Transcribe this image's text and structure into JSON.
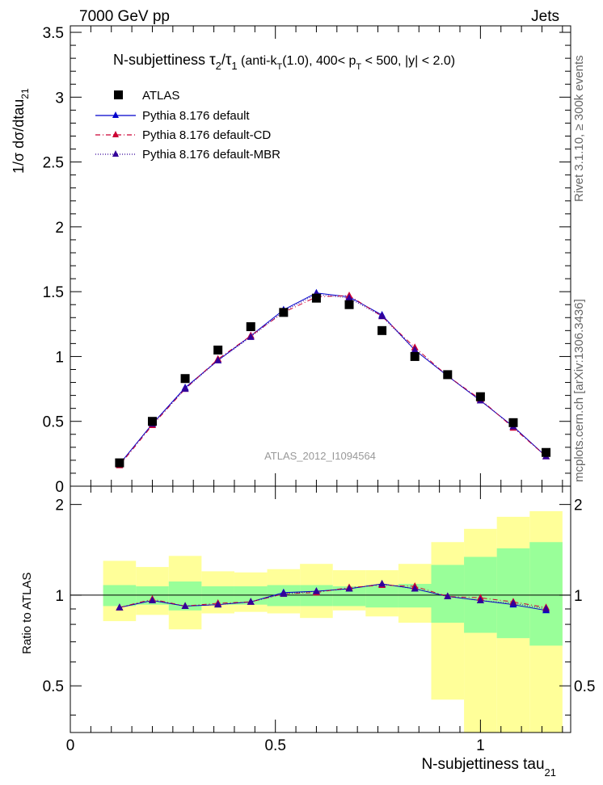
{
  "header": {
    "left": "7000 GeV pp",
    "right": "Jets"
  },
  "side_labels": {
    "rivet": "Rivet 3.1.10, ≥ 300k events",
    "mcplots": "mcplots.cern.ch [arXiv:1306.3436]"
  },
  "chart_data": {
    "type": "scatter",
    "title": {
      "prefix": "N-subjettiness  ",
      "tau": "τ",
      "sub2": "2",
      "slash": "/",
      "sub1": "1",
      "rest_a": " (anti-k",
      "rest_t": "T",
      "rest_b": "(1.0), 400< p",
      "rest_t2": "T",
      "rest_c": " < 500, |y| < 2.0)"
    },
    "analysis_id": "ATLAS_2012_I1094564",
    "xlabel": "N-subjettiness tau",
    "xlabel_sub": "21",
    "ylabel": "1/σ dσ/dtau",
    "ylabel_sub": "21",
    "ratio_ylabel": "Ratio to ATLAS",
    "xlim": [
      0,
      1.22
    ],
    "ylim": [
      0,
      3.55
    ],
    "ratio_ylim": [
      0.35,
      2.3
    ],
    "x_ticks": [
      "0",
      "0.5",
      "1"
    ],
    "x_tick_values": [
      0,
      0.5,
      1
    ],
    "y_ticks": [
      "0",
      "0.5",
      "1",
      "1.5",
      "2",
      "2.5",
      "3",
      "3.5"
    ],
    "y_tick_values": [
      0,
      0.5,
      1,
      1.5,
      2,
      2.5,
      3,
      3.5
    ],
    "ratio_y_ticks": [
      "0.5",
      "1",
      "2"
    ],
    "ratio_y_tick_values": [
      0.5,
      1,
      2
    ],
    "x": [
      0.12,
      0.2,
      0.28,
      0.36,
      0.44,
      0.52,
      0.6,
      0.68,
      0.76,
      0.84,
      0.92,
      1.0,
      1.08,
      1.16
    ],
    "bin_edges": [
      0.08,
      0.16,
      0.24,
      0.32,
      0.4,
      0.48,
      0.56,
      0.64,
      0.72,
      0.8,
      0.88,
      0.96,
      1.04,
      1.12,
      1.2
    ],
    "data": {
      "name": "ATLAS",
      "values": [
        0.18,
        0.5,
        0.83,
        1.05,
        1.23,
        1.34,
        1.45,
        1.4,
        1.2,
        1.0,
        0.86,
        0.69,
        0.49,
        0.26
      ]
    },
    "series": [
      {
        "name": "Pythia 8.176 default",
        "color": "#0000cc",
        "style": "solid",
        "values": [
          0.17,
          0.48,
          0.76,
          0.97,
          1.16,
          1.36,
          1.49,
          1.46,
          1.32,
          1.05,
          0.85,
          0.66,
          0.46,
          0.23
        ],
        "ratio": [
          0.91,
          0.96,
          0.92,
          0.93,
          0.95,
          1.02,
          1.03,
          1.05,
          1.09,
          1.05,
          0.99,
          0.96,
          0.93,
          0.89
        ]
      },
      {
        "name": "Pythia 8.176 default-CD",
        "color": "#cc0033",
        "style": "dashdot",
        "values": [
          0.16,
          0.47,
          0.75,
          0.98,
          1.16,
          1.34,
          1.46,
          1.47,
          1.31,
          1.07,
          0.85,
          0.67,
          0.45,
          0.23
        ],
        "ratio": [
          0.91,
          0.97,
          0.92,
          0.94,
          0.95,
          1.01,
          1.02,
          1.06,
          1.08,
          1.07,
          0.99,
          0.98,
          0.95,
          0.91
        ]
      },
      {
        "name": "Pythia 8.176 default-MBR",
        "color": "#330099",
        "style": "dotted",
        "values": [
          0.17,
          0.48,
          0.75,
          0.97,
          1.15,
          1.35,
          1.48,
          1.45,
          1.31,
          1.05,
          0.85,
          0.66,
          0.46,
          0.23
        ],
        "ratio": [
          0.91,
          0.96,
          0.92,
          0.93,
          0.95,
          1.01,
          1.03,
          1.05,
          1.09,
          1.05,
          0.99,
          0.96,
          0.94,
          0.9
        ]
      }
    ],
    "band_inner": {
      "color": "#99ff99",
      "low": [
        0.92,
        0.93,
        0.89,
        0.93,
        0.93,
        0.92,
        0.92,
        0.92,
        0.91,
        0.91,
        0.81,
        0.75,
        0.72,
        0.68
      ],
      "high": [
        1.08,
        1.07,
        1.11,
        1.07,
        1.07,
        1.08,
        1.08,
        1.07,
        1.08,
        1.09,
        1.26,
        1.34,
        1.43,
        1.5
      ]
    },
    "band_outer": {
      "color": "#ffff99",
      "low": [
        0.82,
        0.86,
        0.77,
        0.87,
        0.88,
        0.87,
        0.84,
        0.89,
        0.85,
        0.81,
        0.45,
        0.35,
        0.35,
        0.35
      ],
      "high": [
        1.3,
        1.24,
        1.35,
        1.2,
        1.19,
        1.22,
        1.27,
        1.21,
        1.21,
        1.27,
        1.5,
        1.66,
        1.82,
        1.9
      ]
    },
    "legend_position": "top-left"
  }
}
